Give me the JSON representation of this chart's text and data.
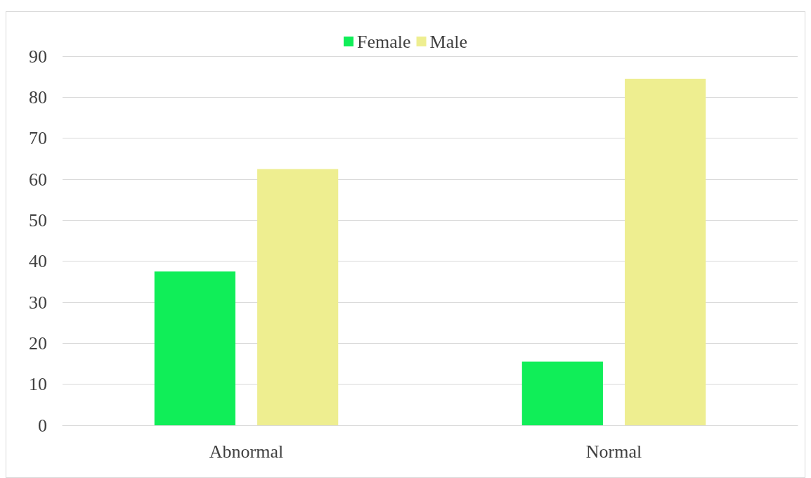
{
  "chart_data": {
    "type": "bar",
    "categories": [
      "Abnormal",
      "Normal"
    ],
    "series": [
      {
        "name": "Female",
        "color": "#10ee58",
        "values": [
          37.5,
          15.5
        ]
      },
      {
        "name": "Male",
        "color": "#eeee90",
        "values": [
          62.5,
          84.5
        ]
      }
    ],
    "ylim": [
      0,
      90
    ],
    "yticks": [
      0,
      10,
      20,
      30,
      40,
      50,
      60,
      70,
      80,
      90
    ],
    "grid": "y",
    "legend": "top"
  }
}
